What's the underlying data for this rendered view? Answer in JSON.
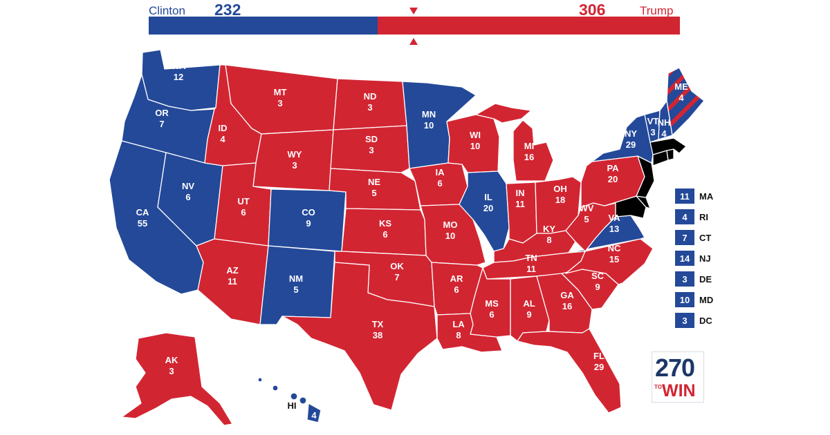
{
  "colors": {
    "dem": "#244999",
    "rep": "#d22532",
    "dark": "#1d3768"
  },
  "header": {
    "dem_name": "Clinton",
    "dem_total": "232",
    "rep_name": "Trump",
    "rep_total": "306",
    "dem_share": 0.431
  },
  "states": {
    "WA": {
      "abbr": "WA",
      "ev": "12",
      "party": "dem"
    },
    "OR": {
      "abbr": "OR",
      "ev": "7",
      "party": "dem"
    },
    "CA": {
      "abbr": "CA",
      "ev": "55",
      "party": "dem"
    },
    "NV": {
      "abbr": "NV",
      "ev": "6",
      "party": "dem"
    },
    "ID": {
      "abbr": "ID",
      "ev": "4",
      "party": "rep"
    },
    "MT": {
      "abbr": "MT",
      "ev": "3",
      "party": "rep"
    },
    "WY": {
      "abbr": "WY",
      "ev": "3",
      "party": "rep"
    },
    "UT": {
      "abbr": "UT",
      "ev": "6",
      "party": "rep"
    },
    "CO": {
      "abbr": "CO",
      "ev": "9",
      "party": "dem"
    },
    "AZ": {
      "abbr": "AZ",
      "ev": "11",
      "party": "rep"
    },
    "NM": {
      "abbr": "NM",
      "ev": "5",
      "party": "dem"
    },
    "ND": {
      "abbr": "ND",
      "ev": "3",
      "party": "rep"
    },
    "SD": {
      "abbr": "SD",
      "ev": "3",
      "party": "rep"
    },
    "NE": {
      "abbr": "NE",
      "ev": "5",
      "party": "rep"
    },
    "KS": {
      "abbr": "KS",
      "ev": "6",
      "party": "rep"
    },
    "OK": {
      "abbr": "OK",
      "ev": "7",
      "party": "rep"
    },
    "TX": {
      "abbr": "TX",
      "ev": "38",
      "party": "rep"
    },
    "MN": {
      "abbr": "MN",
      "ev": "10",
      "party": "dem"
    },
    "IA": {
      "abbr": "IA",
      "ev": "6",
      "party": "rep"
    },
    "MO": {
      "abbr": "MO",
      "ev": "10",
      "party": "rep"
    },
    "AR": {
      "abbr": "AR",
      "ev": "6",
      "party": "rep"
    },
    "LA": {
      "abbr": "LA",
      "ev": "8",
      "party": "rep"
    },
    "WI": {
      "abbr": "WI",
      "ev": "10",
      "party": "rep"
    },
    "IL": {
      "abbr": "IL",
      "ev": "20",
      "party": "dem"
    },
    "MI": {
      "abbr": "MI",
      "ev": "16",
      "party": "rep"
    },
    "IN": {
      "abbr": "IN",
      "ev": "11",
      "party": "rep"
    },
    "OH": {
      "abbr": "OH",
      "ev": "18",
      "party": "rep"
    },
    "KY": {
      "abbr": "KY",
      "ev": "8",
      "party": "rep"
    },
    "TN": {
      "abbr": "TN",
      "ev": "11",
      "party": "rep"
    },
    "MS": {
      "abbr": "MS",
      "ev": "6",
      "party": "rep"
    },
    "AL": {
      "abbr": "AL",
      "ev": "9",
      "party": "rep"
    },
    "GA": {
      "abbr": "GA",
      "ev": "16",
      "party": "rep"
    },
    "FL": {
      "abbr": "FL",
      "ev": "29",
      "party": "rep"
    },
    "SC": {
      "abbr": "SC",
      "ev": "9",
      "party": "rep"
    },
    "NC": {
      "abbr": "NC",
      "ev": "15",
      "party": "rep"
    },
    "VA": {
      "abbr": "VA",
      "ev": "13",
      "party": "dem"
    },
    "WV": {
      "abbr": "WV",
      "ev": "5",
      "party": "rep"
    },
    "PA": {
      "abbr": "PA",
      "ev": "20",
      "party": "rep"
    },
    "NY": {
      "abbr": "NY",
      "ev": "29",
      "party": "dem"
    },
    "VT": {
      "abbr": "VT",
      "ev": "3",
      "party": "dem"
    },
    "NH": {
      "abbr": "NH",
      "ev": "4",
      "party": "dem"
    },
    "ME": {
      "abbr": "ME",
      "ev": "4",
      "party": "split"
    },
    "AK": {
      "abbr": "AK",
      "ev": "3",
      "party": "rep"
    },
    "HI": {
      "abbr": "HI",
      "ev": "4",
      "party": "dem"
    }
  },
  "small_states": [
    {
      "abbr": "MA",
      "ev": "11"
    },
    {
      "abbr": "RI",
      "ev": "4"
    },
    {
      "abbr": "CT",
      "ev": "7"
    },
    {
      "abbr": "NJ",
      "ev": "14"
    },
    {
      "abbr": "DE",
      "ev": "3"
    },
    {
      "abbr": "MD",
      "ev": "10"
    },
    {
      "abbr": "DC",
      "ev": "3"
    }
  ],
  "logo": {
    "number": "270",
    "to": "TO",
    "win": "WIN"
  }
}
